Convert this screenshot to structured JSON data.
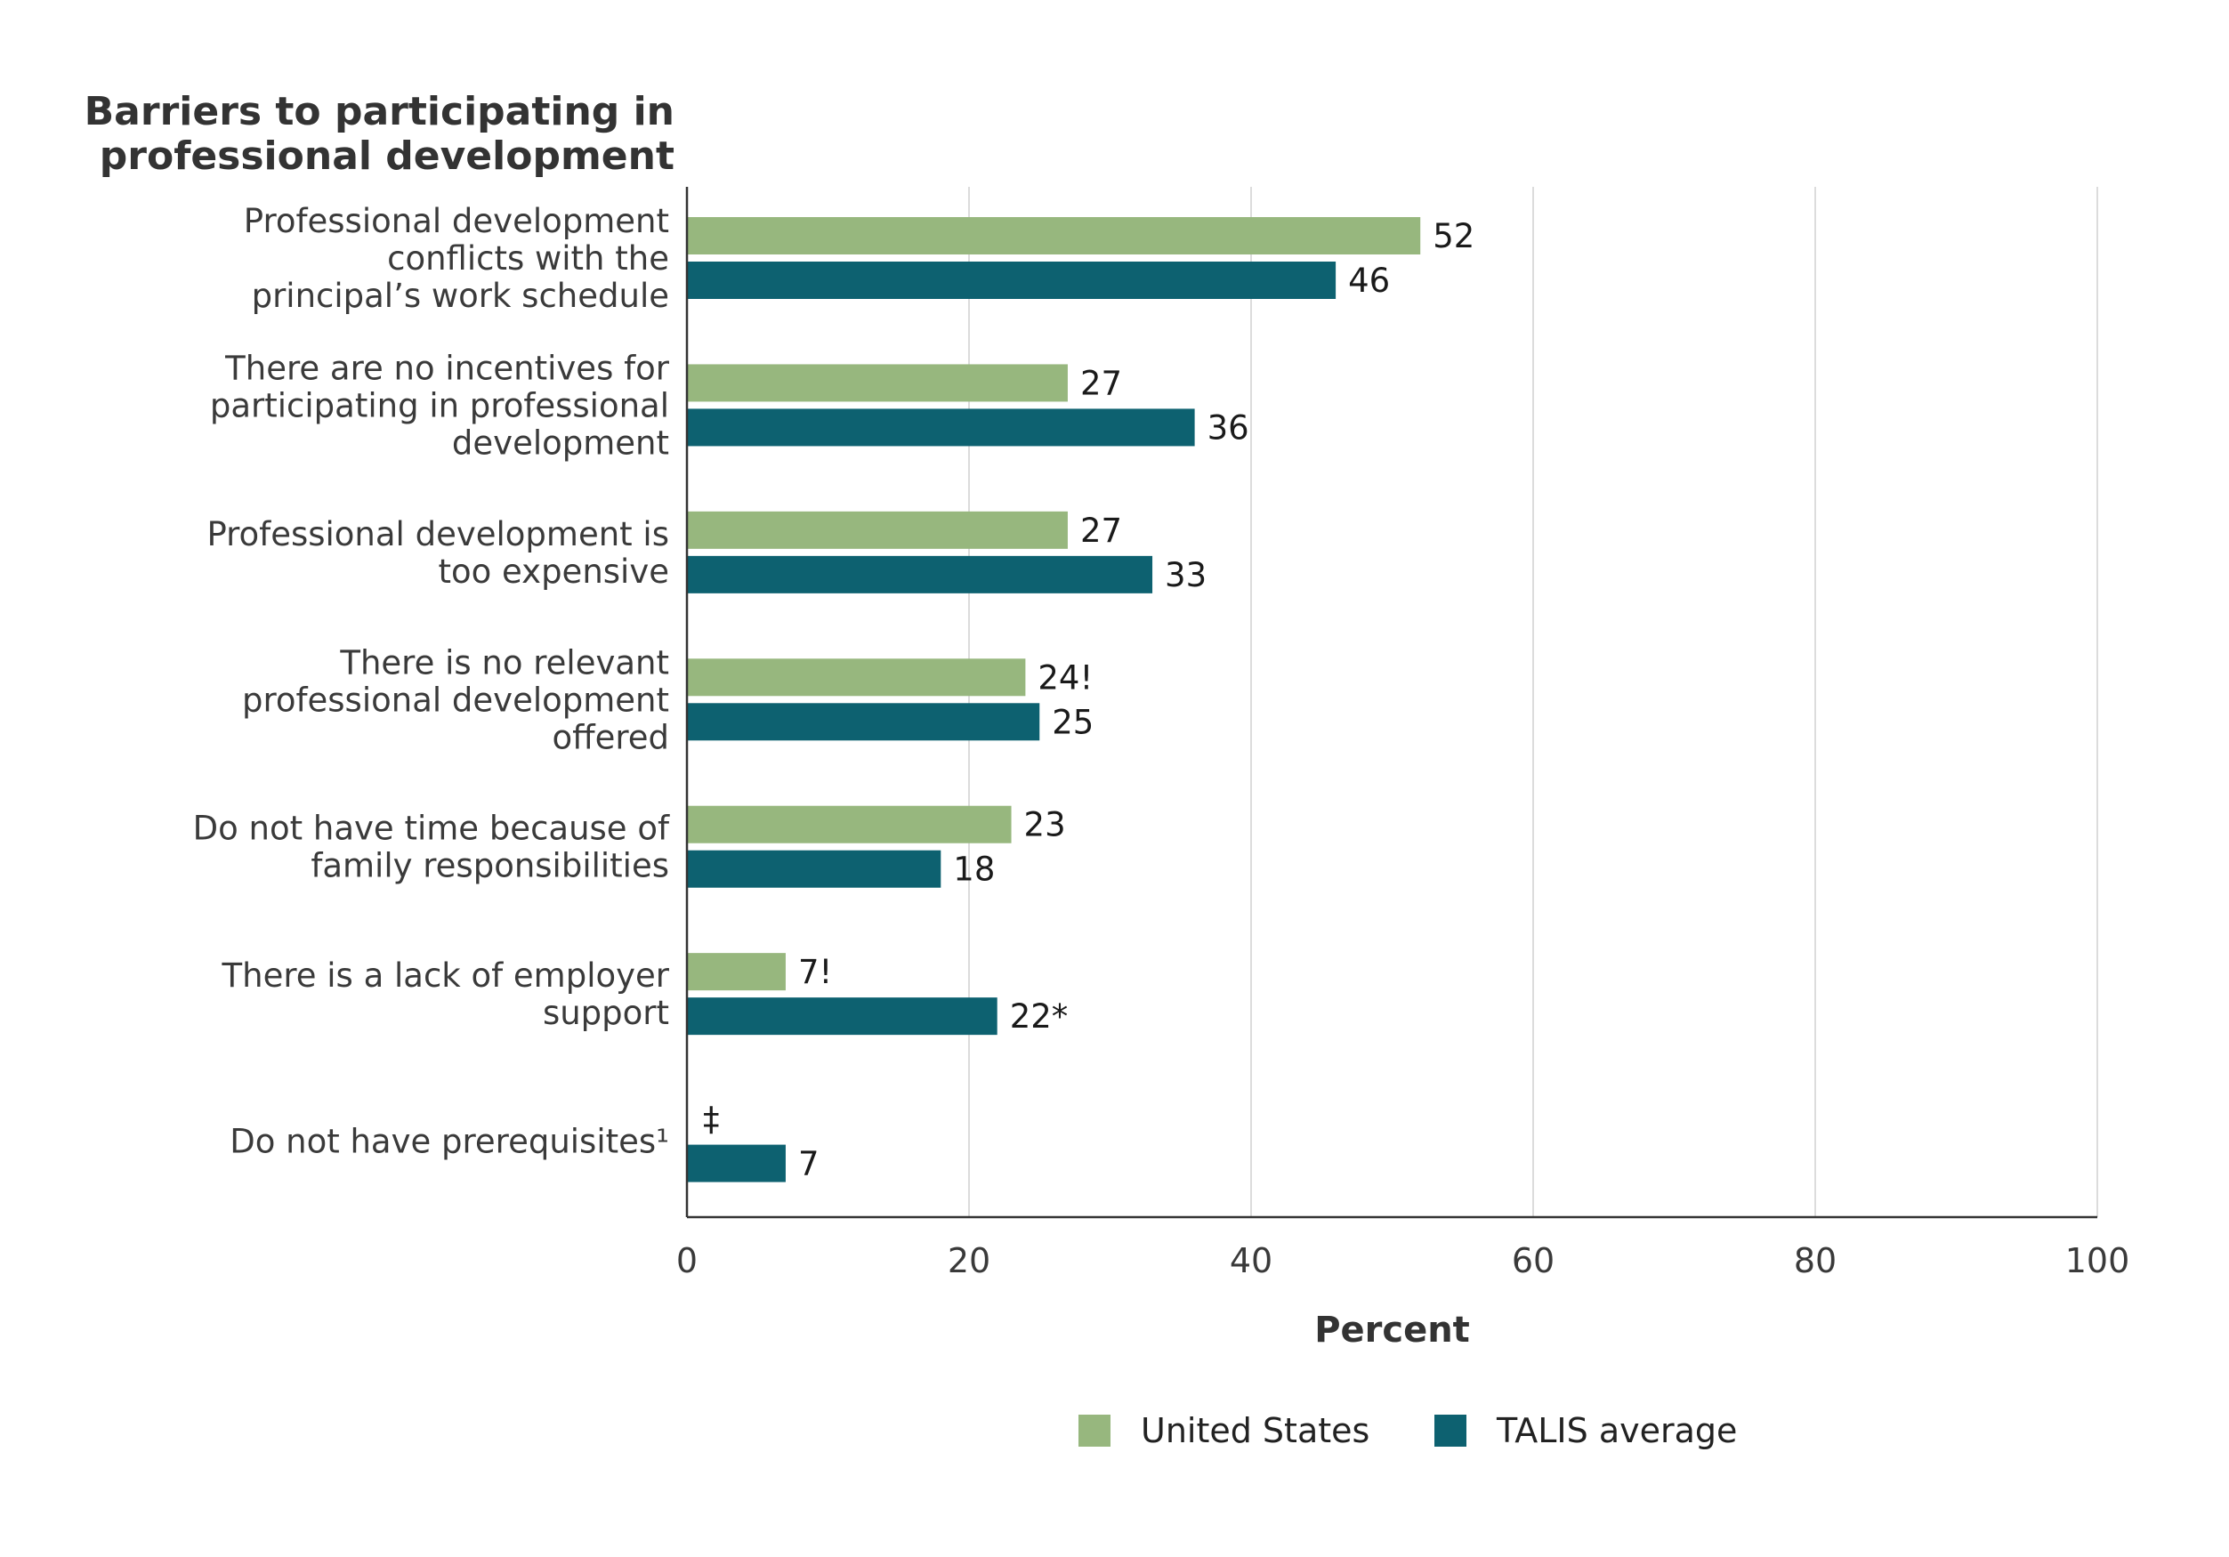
{
  "chart_data": {
    "type": "bar",
    "orientation": "horizontal",
    "title": "Barriers to participating in professional development",
    "title_lines": [
      "Barriers to participating in",
      "professional development"
    ],
    "xlabel": "Percent",
    "ylabel": "",
    "xlim": [
      0,
      100
    ],
    "xticks": [
      0,
      20,
      40,
      60,
      80,
      100
    ],
    "grid": true,
    "legend_position": "bottom",
    "categories": [
      [
        "Professional development",
        "conflicts with the",
        "principal’s work schedule"
      ],
      [
        "There are no incentives for",
        "participating in professional",
        "development"
      ],
      [
        "Professional development is",
        "too expensive"
      ],
      [
        "There is no relevant",
        "professional development",
        "offered"
      ],
      [
        "Do not have time because of",
        "family responsibilities"
      ],
      [
        "There is a lack of employer",
        "support"
      ],
      [
        "Do not have prerequisites¹"
      ]
    ],
    "series": [
      {
        "name": "United States",
        "color": "#97b77e",
        "values": [
          52,
          27,
          27,
          24,
          23,
          7,
          null
        ],
        "labels": [
          "52",
          "27",
          "27",
          "24!",
          "23",
          "7!",
          "‡"
        ]
      },
      {
        "name": "TALIS average",
        "color": "#0d6170",
        "values": [
          46,
          36,
          33,
          25,
          18,
          22,
          7
        ],
        "labels": [
          "46",
          "36",
          "33",
          "25",
          "18",
          "22*",
          "7"
        ]
      }
    ]
  }
}
